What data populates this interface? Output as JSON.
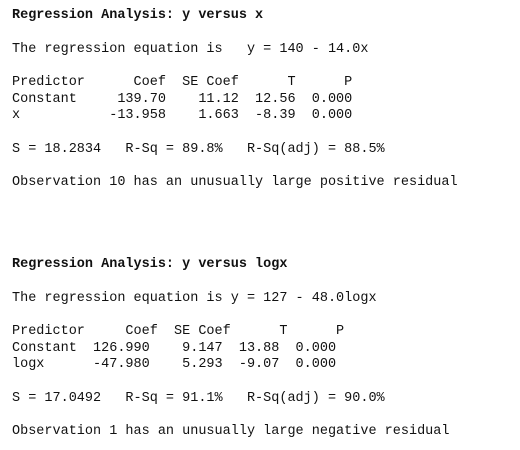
{
  "analysis1": {
    "title": "Regression Analysis: y versus x",
    "equation": "The regression equation is   y = 140 - 14.0x",
    "table_header": "Predictor      Coef  SE Coef      T      P",
    "rows": [
      "Constant     139.70    11.12  12.56  0.000",
      "x           -13.958    1.663  -8.39  0.000"
    ],
    "stats": "S = 18.2834   R-Sq = 89.8%   R-Sq(adj) = 88.5%",
    "note": "Observation 10 has an unusually large positive residual"
  },
  "analysis2": {
    "title": "Regression Analysis: y versus logx",
    "equation": "The regression equation is y = 127 - 48.0logx",
    "table_header": "Predictor     Coef  SE Coef      T      P",
    "rows": [
      "Constant  126.990    9.147  13.88  0.000",
      "logx      -47.980    5.293  -9.07  0.000"
    ],
    "stats": "S = 17.0492   R-Sq = 91.1%   R-Sq(adj) = 90.0%",
    "note": "Observation 1 has an unusually large negative residual"
  }
}
